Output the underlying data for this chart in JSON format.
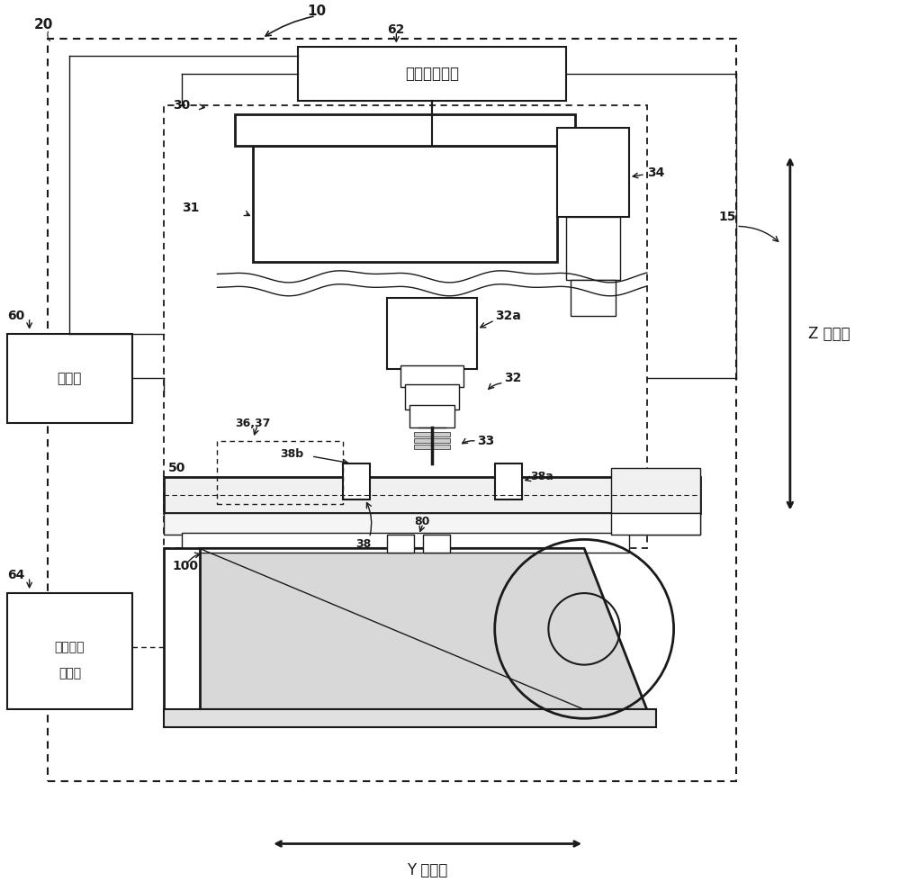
{
  "bg_color": "#ffffff",
  "line_color": "#1a1a1a",
  "label_10": "10",
  "label_20": "20",
  "label_30": "30",
  "label_31": "31",
  "label_32": "32",
  "label_32a": "32a",
  "label_33": "33",
  "label_34": "34",
  "label_38": "38",
  "label_38a": "38a",
  "label_38b": "38b",
  "label_50": "50",
  "label_60": "60",
  "label_62": "62",
  "label_64": "64",
  "label_80": "80",
  "label_100": "100",
  "label_15": "15",
  "label_36_37": "36,37",
  "text_62": "搜载头控制部",
  "text_60": "控制部",
  "text_64a": "部件供给",
  "text_64b": "控制部",
  "text_z": "Z 轴方向",
  "text_y": "Y 轴方向"
}
